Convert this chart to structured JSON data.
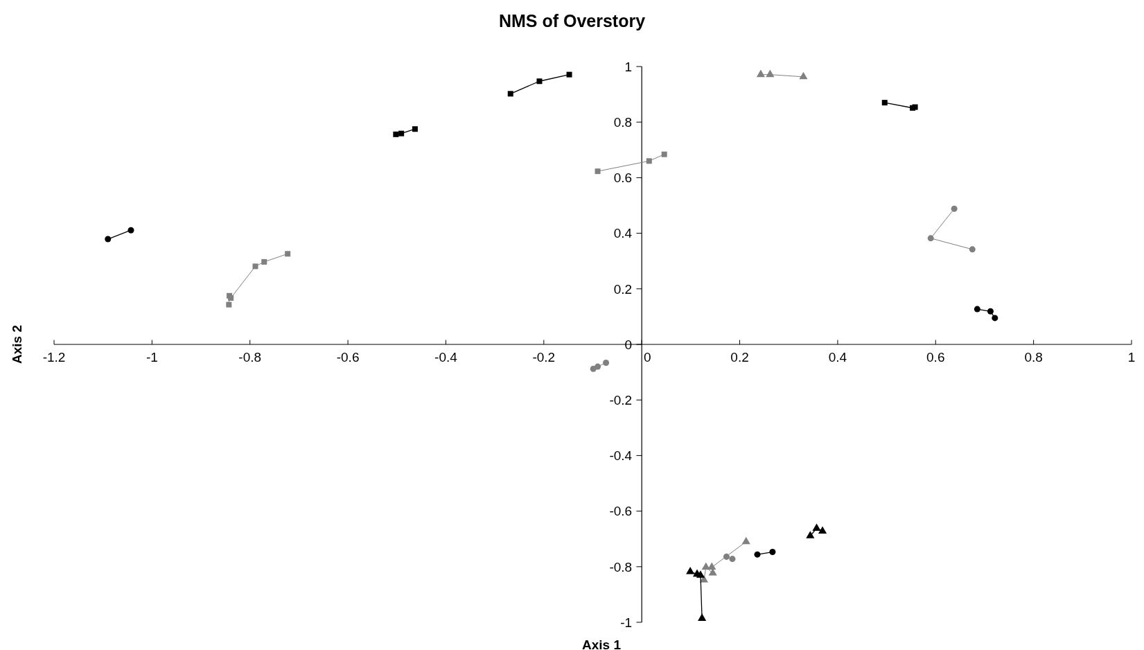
{
  "chart_data": {
    "type": "line",
    "title": "NMS of Overstory",
    "xlabel": "Axis 1",
    "ylabel": "Axis 2",
    "xlim": [
      -1.2,
      1
    ],
    "xticks": [
      -1.2,
      -1,
      -0.8,
      -0.6,
      -0.4,
      -0.2,
      0,
      0.2,
      0.4,
      0.6,
      0.8,
      1
    ],
    "ylim": [
      -1,
      1
    ],
    "yticks": [
      -1,
      -0.8,
      -0.6,
      -0.4,
      -0.2,
      0,
      0.2,
      0.4,
      0.6,
      0.8,
      1
    ],
    "series": [
      {
        "color": "#000000",
        "marker": "circle",
        "x": [
          -1.09,
          -1.043
        ],
        "values": [
          0.379,
          0.411
        ]
      },
      {
        "color": "#808080",
        "marker": "square",
        "x": [
          -0.843,
          -0.842,
          -0.839,
          -0.789,
          -0.771,
          -0.723
        ],
        "values": [
          0.143,
          0.175,
          0.167,
          0.281,
          0.297,
          0.326
        ]
      },
      {
        "color": "#000000",
        "marker": "square",
        "x": [
          -0.502,
          -0.491,
          -0.463
        ],
        "values": [
          0.756,
          0.759,
          0.775
        ]
      },
      {
        "color": "#000000",
        "marker": "square",
        "x": [
          -0.268,
          -0.209,
          -0.148
        ],
        "values": [
          0.902,
          0.947,
          0.971
        ]
      },
      {
        "color": "#808080",
        "marker": "square",
        "x": [
          -0.09,
          0.015,
          0.046
        ],
        "values": [
          0.623,
          0.66,
          0.684
        ]
      },
      {
        "color": "#808080",
        "marker": "triangle",
        "x": [
          0.243,
          0.262,
          0.33
        ],
        "values": [
          0.971,
          0.971,
          0.963
        ]
      },
      {
        "color": "#000000",
        "marker": "square",
        "x": [
          0.496,
          0.553,
          0.558
        ],
        "values": [
          0.87,
          0.851,
          0.854
        ]
      },
      {
        "color": "#808080",
        "marker": "circle",
        "x": [
          0.638,
          0.59,
          0.675
        ],
        "values": [
          0.488,
          0.382,
          0.342
        ]
      },
      {
        "color": "#000000",
        "marker": "circle",
        "x": [
          0.685,
          0.712,
          0.721
        ],
        "values": [
          0.127,
          0.119,
          0.095
        ]
      },
      {
        "color": "#808080",
        "marker": "circle",
        "x": [
          -0.099,
          -0.09,
          -0.073
        ],
        "values": [
          -0.088,
          -0.08,
          -0.066
        ]
      },
      {
        "color": "#808080",
        "marker": "triangle",
        "x": [
          0.127,
          0.131,
          0.145,
          0.143,
          0.213
        ],
        "values": [
          -0.848,
          -0.802,
          -0.823,
          -0.802,
          -0.71
        ]
      },
      {
        "color": "#808080",
        "marker": "circle",
        "x": [
          0.173,
          0.185
        ],
        "values": [
          -0.764,
          -0.772
        ]
      },
      {
        "color": "#000000",
        "marker": "circle",
        "x": [
          0.236,
          0.267
        ],
        "values": [
          -0.756,
          -0.747
        ]
      },
      {
        "color": "#000000",
        "marker": "triangle",
        "x": [
          0.123,
          0.12,
          0.113,
          0.099
        ],
        "values": [
          -0.986,
          -0.831,
          -0.827,
          -0.818
        ]
      },
      {
        "color": "#000000",
        "marker": "triangle",
        "x": [
          0.344,
          0.357,
          0.369
        ],
        "values": [
          -0.689,
          -0.662,
          -0.672
        ]
      }
    ]
  }
}
